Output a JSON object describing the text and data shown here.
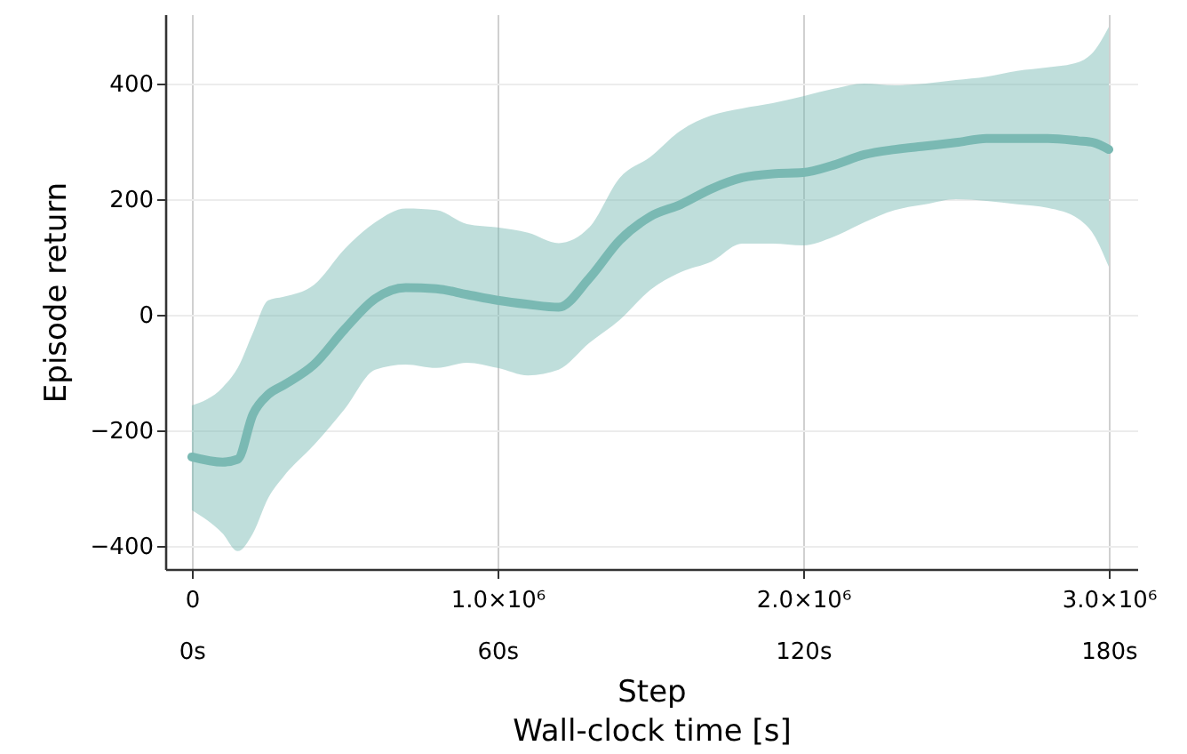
{
  "chart_data": {
    "type": "line",
    "xlabel": "Step",
    "ylabel": "Episode return",
    "x2label": "Wall-clock time [s]",
    "x": [
      0,
      100000,
      150000,
      200000,
      250000,
      300000,
      400000,
      500000,
      600000,
      700000,
      800000,
      900000,
      1000000,
      1100000,
      1200000,
      1300000,
      1400000,
      1500000,
      1600000,
      1700000,
      1800000,
      1900000,
      2000000,
      2100000,
      2200000,
      2300000,
      2400000,
      2500000,
      2600000,
      2700000,
      2800000,
      2900000,
      2950000,
      3000000
    ],
    "series": [
      {
        "color": "#7ab9b3",
        "values": [
          -246,
          -255,
          -250,
          -172,
          -138,
          -122,
          -86,
          -25,
          28,
          47,
          45,
          35,
          25,
          18,
          13,
          63,
          129,
          170,
          191,
          218,
          237,
          244,
          246,
          259,
          277,
          286,
          292,
          298,
          305,
          305,
          305,
          301,
          298,
          286
        ],
        "lower": [
          -338,
          -378,
          -409,
          -378,
          -317,
          -280,
          -225,
          -163,
          -95,
          -86,
          -92,
          -83,
          -92,
          -105,
          -95,
          -49,
          -9,
          43,
          74,
          92,
          123,
          123,
          120,
          135,
          160,
          181,
          191,
          200,
          197,
          191,
          185,
          166,
          139,
          83
        ],
        "upper": [
          -157,
          -126,
          -92,
          -31,
          25,
          31,
          52,
          114,
          160,
          184,
          181,
          157,
          151,
          142,
          124,
          151,
          237,
          273,
          319,
          345,
          357,
          366,
          378,
          391,
          400,
          397,
          400,
          406,
          412,
          422,
          428,
          437,
          455,
          498
        ]
      }
    ],
    "xlim": [
      -87000,
      3093000
    ],
    "xticks": [
      0,
      {
        "value": 1000000,
        "label": "1.0×10⁶"
      },
      {
        "value": 2000000,
        "label": "2.0×10⁶"
      },
      {
        "value": 3000000,
        "label": "3.0×10⁶"
      }
    ],
    "x2lim": [
      -5.2,
      185.6
    ],
    "x2ticks": [
      {
        "value": 0,
        "label": "0s"
      },
      {
        "value": 60,
        "label": "60s"
      },
      {
        "value": 120,
        "label": "120s"
      },
      {
        "value": 180,
        "label": "180s"
      }
    ],
    "ylim": [
      -440,
      520
    ],
    "yticks": [
      -400,
      -200,
      0,
      200,
      400
    ],
    "grid": true,
    "line_style": "solid",
    "marker": "none"
  }
}
